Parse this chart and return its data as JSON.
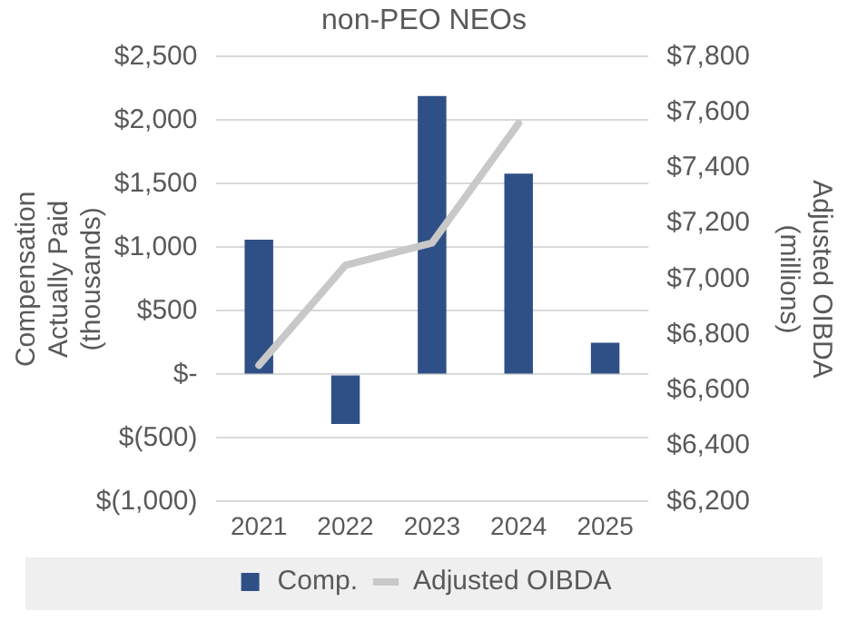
{
  "chart_data": {
    "type": "bar",
    "title": "non-PEO NEOs",
    "ylabel": "Compensation Actually Paid (thousands)",
    "y2label": "Adjusted OIBDA (millions)",
    "categories": [
      "2021",
      "2022",
      "2023",
      "2024",
      "2025"
    ],
    "series": [
      {
        "name": "Comp.",
        "color": "#2f5087",
        "values": [
          1060,
          -390,
          2190,
          1580,
          250
        ]
      },
      {
        "name": "Adjusted OIBDA",
        "type": "line",
        "axis": "y2",
        "color": "#c8c8c8",
        "values": [
          6690,
          7050,
          7130,
          7560,
          null
        ]
      }
    ],
    "ylim": [
      -1000,
      2500
    ],
    "yticks": [
      {
        "value": -1000,
        "label": "$(1,000)"
      },
      {
        "value": -500,
        "label": "$(500)"
      },
      {
        "value": 0,
        "label": "$-"
      },
      {
        "value": 500,
        "label": "$500"
      },
      {
        "value": 1000,
        "label": "$1,000"
      },
      {
        "value": 1500,
        "label": "$1,500"
      },
      {
        "value": 2000,
        "label": "$2,000"
      },
      {
        "value": 2500,
        "label": "$2,500"
      }
    ],
    "y2lim": [
      6200,
      7800
    ],
    "y2ticks": [
      {
        "value": 6200,
        "label": "$6,200"
      },
      {
        "value": 6400,
        "label": "$6,400"
      },
      {
        "value": 6600,
        "label": "$6,600"
      },
      {
        "value": 6800,
        "label": "$6,800"
      },
      {
        "value": 7000,
        "label": "$7,000"
      },
      {
        "value": 7200,
        "label": "$7,200"
      },
      {
        "value": 7400,
        "label": "$7,400"
      },
      {
        "value": 7600,
        "label": "$7,600"
      },
      {
        "value": 7800,
        "label": "$7,800"
      }
    ],
    "grid": "y",
    "legend": "bottom"
  }
}
